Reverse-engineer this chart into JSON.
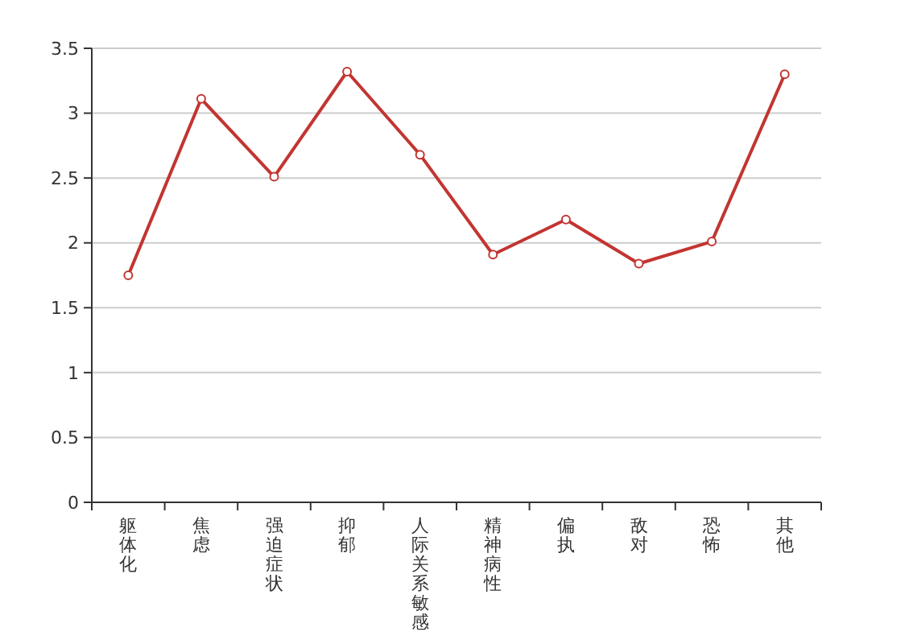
{
  "chart_data": {
    "type": "line",
    "categories": [
      "躯体化",
      "焦虑",
      "强迫症状",
      "抑郁",
      "人际关系敏感",
      "精神病性",
      "偏执",
      "敌对",
      "恐怖",
      "其他"
    ],
    "series": [
      {
        "color": "#c23531",
        "values": [
          1.75,
          3.11,
          2.51,
          3.32,
          2.68,
          1.91,
          2.18,
          1.84,
          2.01,
          3.3
        ]
      }
    ],
    "ylim": [
      0,
      3.5
    ],
    "yticks": [
      0,
      {
        "value": 0.5,
        "label": "0.5"
      },
      1,
      {
        "value": 1.5,
        "label": "1.5"
      },
      2,
      {
        "value": 2.5,
        "label": "2.5"
      },
      3,
      {
        "value": 3.5,
        "label": "3.5"
      }
    ],
    "grid": "y",
    "marker": "circle",
    "line_style": "solid"
  }
}
